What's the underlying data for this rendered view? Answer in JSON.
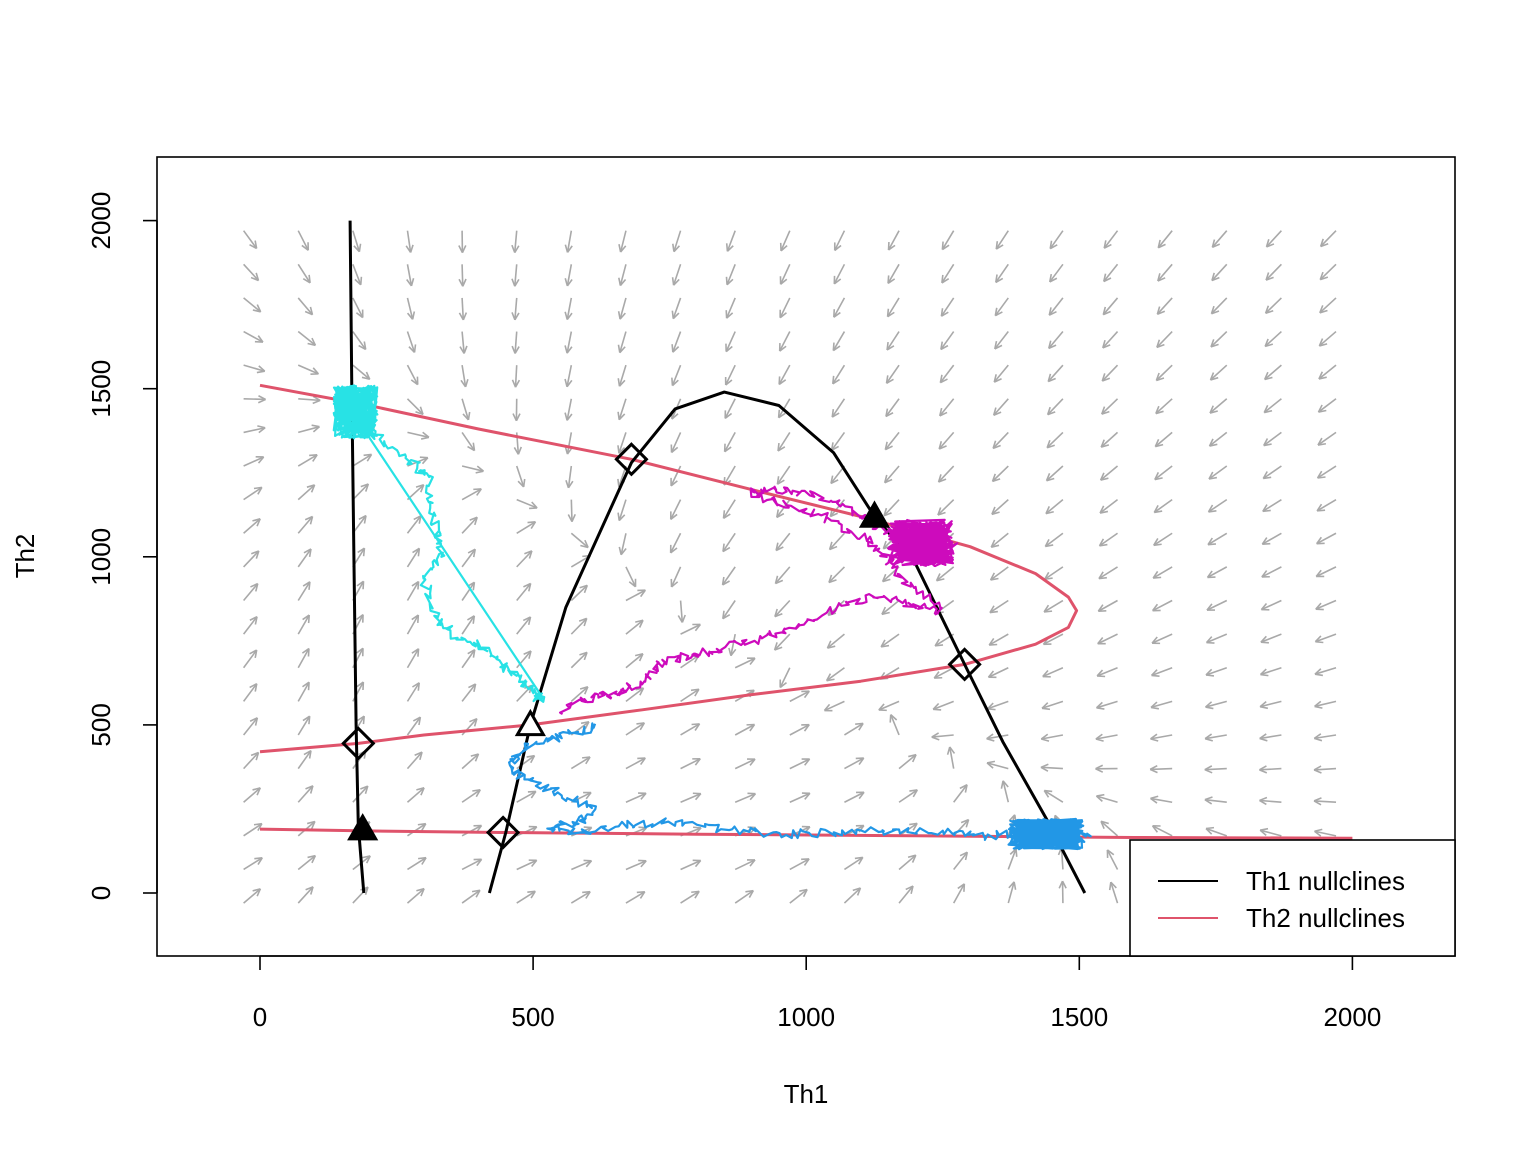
{
  "chart_data": {
    "type": "scatter",
    "title": "",
    "xlabel": "Th1",
    "ylabel": "Th2",
    "xlim": [
      -190,
      2190
    ],
    "ylim": [
      -190,
      2190
    ],
    "x_ticks": [
      0,
      500,
      1000,
      1500,
      2000
    ],
    "y_ticks": [
      0,
      500,
      1000,
      1500,
      2000
    ],
    "legend": {
      "placement": "bottom-right",
      "entries": [
        {
          "label": "Th1 nullclines",
          "color": "#000000"
        },
        {
          "label": "Th2 nullclines",
          "color": "#DF536B"
        }
      ]
    },
    "colors": {
      "th1_nullcline": "#000000",
      "th2_nullcline": "#DF536B",
      "vector_field": "#A9A9A9",
      "traj_cyan": "#28E2E5",
      "traj_magenta": "#CD0BBC",
      "traj_blue": "#2297E6"
    },
    "th1_nullclines": [
      {
        "points": [
          [
            165,
            2000
          ],
          [
            168,
            1500
          ],
          [
            172,
            1000
          ],
          [
            176,
            500
          ],
          [
            180,
            200
          ],
          [
            190,
            0
          ]
        ]
      },
      {
        "points": [
          [
            420,
            0
          ],
          [
            450,
            180
          ],
          [
            495,
            500
          ],
          [
            560,
            850
          ],
          [
            680,
            1280
          ],
          [
            760,
            1440
          ],
          [
            850,
            1490
          ],
          [
            950,
            1450
          ],
          [
            1050,
            1310
          ],
          [
            1125,
            1120
          ],
          [
            1200,
            980
          ],
          [
            1290,
            680
          ],
          [
            1360,
            450
          ],
          [
            1440,
            220
          ],
          [
            1510,
            0
          ]
        ]
      }
    ],
    "th2_nullclines": [
      {
        "points": [
          [
            0,
            1510
          ],
          [
            200,
            1450
          ],
          [
            400,
            1380
          ],
          [
            680,
            1290
          ],
          [
            900,
            1200
          ],
          [
            1100,
            1120
          ],
          [
            1300,
            1030
          ],
          [
            1420,
            950
          ],
          [
            1480,
            880
          ],
          [
            1495,
            840
          ],
          [
            1480,
            790
          ],
          [
            1420,
            740
          ],
          [
            1290,
            680
          ],
          [
            1100,
            630
          ],
          [
            900,
            590
          ],
          [
            700,
            545
          ],
          [
            495,
            500
          ],
          [
            300,
            470
          ],
          [
            180,
            445
          ],
          [
            0,
            420
          ]
        ]
      },
      {
        "points": [
          [
            0,
            190
          ],
          [
            180,
            185
          ],
          [
            445,
            180
          ],
          [
            800,
            175
          ],
          [
            1200,
            170
          ],
          [
            1600,
            165
          ],
          [
            2000,
            163
          ]
        ]
      }
    ],
    "stable_points": [
      {
        "x": 188,
        "y": 190
      },
      {
        "x": 495,
        "y": 500
      },
      {
        "x": 1125,
        "y": 1120
      }
    ],
    "unstable_points": [
      {
        "x": 180,
        "y": 445
      },
      {
        "x": 445,
        "y": 180
      },
      {
        "x": 680,
        "y": 1290
      },
      {
        "x": 1290,
        "y": 680
      }
    ],
    "trajectories": [
      {
        "color_key": "traj_cyan",
        "path": [
          [
            160,
            1440
          ],
          [
            190,
            1400
          ],
          [
            230,
            1330
          ],
          [
            280,
            1280
          ],
          [
            310,
            1230
          ],
          [
            320,
            1100
          ],
          [
            330,
            1010
          ],
          [
            300,
            930
          ],
          [
            320,
            830
          ],
          [
            350,
            770
          ],
          [
            400,
            740
          ],
          [
            440,
            680
          ],
          [
            480,
            630
          ],
          [
            500,
            590
          ],
          [
            520,
            570
          ]
        ],
        "cluster": {
          "x": 175,
          "y": 1430,
          "rx": 40,
          "ry": 80
        }
      },
      {
        "color_key": "traj_magenta",
        "path": [
          [
            550,
            540
          ],
          [
            600,
            580
          ],
          [
            650,
            590
          ],
          [
            700,
            630
          ],
          [
            740,
            690
          ],
          [
            800,
            710
          ],
          [
            850,
            730
          ],
          [
            920,
            760
          ],
          [
            980,
            790
          ],
          [
            1060,
            850
          ],
          [
            1130,
            890
          ],
          [
            1200,
            850
          ],
          [
            1250,
            840
          ],
          [
            1180,
            930
          ],
          [
            1150,
            1000
          ],
          [
            1100,
            1060
          ],
          [
            1020,
            1130
          ],
          [
            950,
            1160
          ],
          [
            900,
            1190
          ],
          [
            960,
            1200
          ],
          [
            1030,
            1180
          ],
          [
            1100,
            1120
          ],
          [
            1160,
            1060
          ],
          [
            1210,
            1020
          ],
          [
            1280,
            1040
          ]
        ],
        "cluster": {
          "x": 1210,
          "y": 1040,
          "rx": 60,
          "ry": 70
        }
      },
      {
        "color_key": "traj_blue",
        "path": [
          [
            620,
            500
          ],
          [
            560,
            470
          ],
          [
            500,
            440
          ],
          [
            470,
            410
          ],
          [
            460,
            370
          ],
          [
            500,
            330
          ],
          [
            560,
            290
          ],
          [
            610,
            250
          ],
          [
            580,
            210
          ],
          [
            530,
            200
          ],
          [
            570,
            180
          ],
          [
            650,
            200
          ],
          [
            750,
            210
          ],
          [
            850,
            190
          ],
          [
            950,
            175
          ],
          [
            1050,
            180
          ],
          [
            1150,
            185
          ],
          [
            1250,
            180
          ],
          [
            1330,
            170
          ],
          [
            1400,
            175
          ],
          [
            1460,
            180
          ],
          [
            1520,
            170
          ]
        ],
        "cluster": {
          "x": 1440,
          "y": 175,
          "rx": 70,
          "ry": 45
        }
      }
    ]
  }
}
